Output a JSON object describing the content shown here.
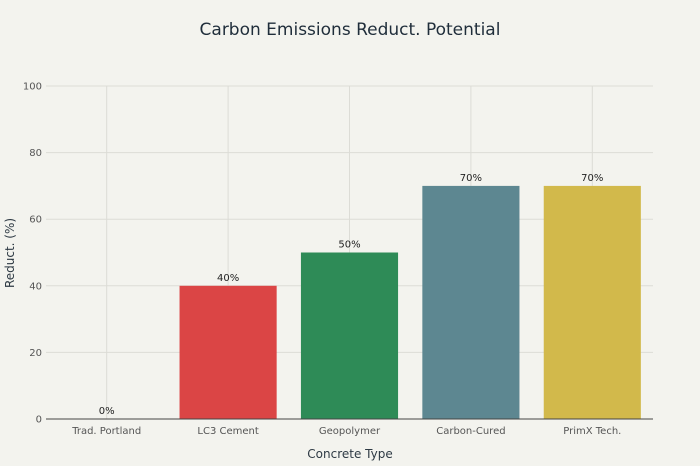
{
  "chart_data": {
    "type": "bar",
    "title": "Carbon Emissions Reduct. Potential",
    "xlabel": "Concrete Type",
    "ylabel": "Reduct. (%)",
    "categories": [
      "Trad. Portland",
      "LC3 Cement",
      "Geopolymer",
      "Carbon-Cured",
      "PrimX Tech."
    ],
    "values": [
      0,
      40,
      50,
      70,
      70
    ],
    "data_labels": [
      "0%",
      "40%",
      "50%",
      "70%",
      "70%"
    ],
    "colors": [
      "#1f8a8a",
      "#db4545",
      "#2e8b57",
      "#5d8791",
      "#d2b94b"
    ],
    "ylim": [
      0,
      100
    ],
    "yticks": [
      0,
      20,
      40,
      60,
      80,
      100
    ],
    "grid": true,
    "legend": "none"
  }
}
